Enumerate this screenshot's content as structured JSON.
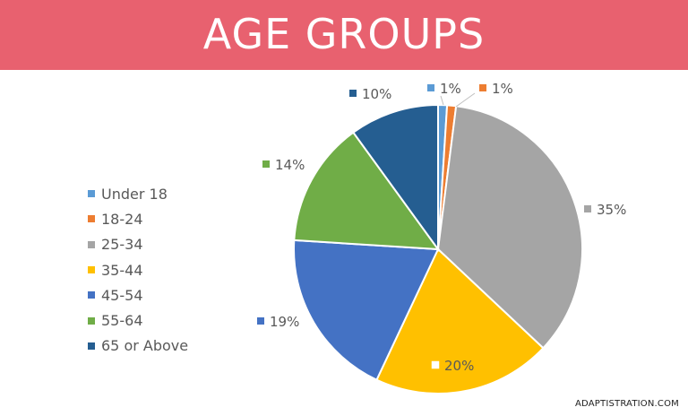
{
  "header": {
    "title": "AGE GROUPS"
  },
  "footer": {
    "credit": "ADAPTISTRATION.COM"
  },
  "chart_data": {
    "type": "pie",
    "title": "AGE GROUPS",
    "legend_position": "left",
    "label_suffix": "%",
    "slices": [
      {
        "label": "Under 18",
        "value": 1,
        "display": "1%",
        "color": "#5b9bd5"
      },
      {
        "label": "18-24",
        "value": 1,
        "display": "1%",
        "color": "#ed7d31"
      },
      {
        "label": "25-34",
        "value": 35,
        "display": "35%",
        "color": "#a5a5a5"
      },
      {
        "label": "35-44",
        "value": 20,
        "display": "20%",
        "color": "#ffc000"
      },
      {
        "label": "45-54",
        "value": 19,
        "display": "19%",
        "color": "#4472c4"
      },
      {
        "label": "55-64",
        "value": 14,
        "display": "14%",
        "color": "#70ad47"
      },
      {
        "label": "65 or Above",
        "value": 10,
        "display": "10%",
        "color": "#255e91"
      }
    ]
  }
}
